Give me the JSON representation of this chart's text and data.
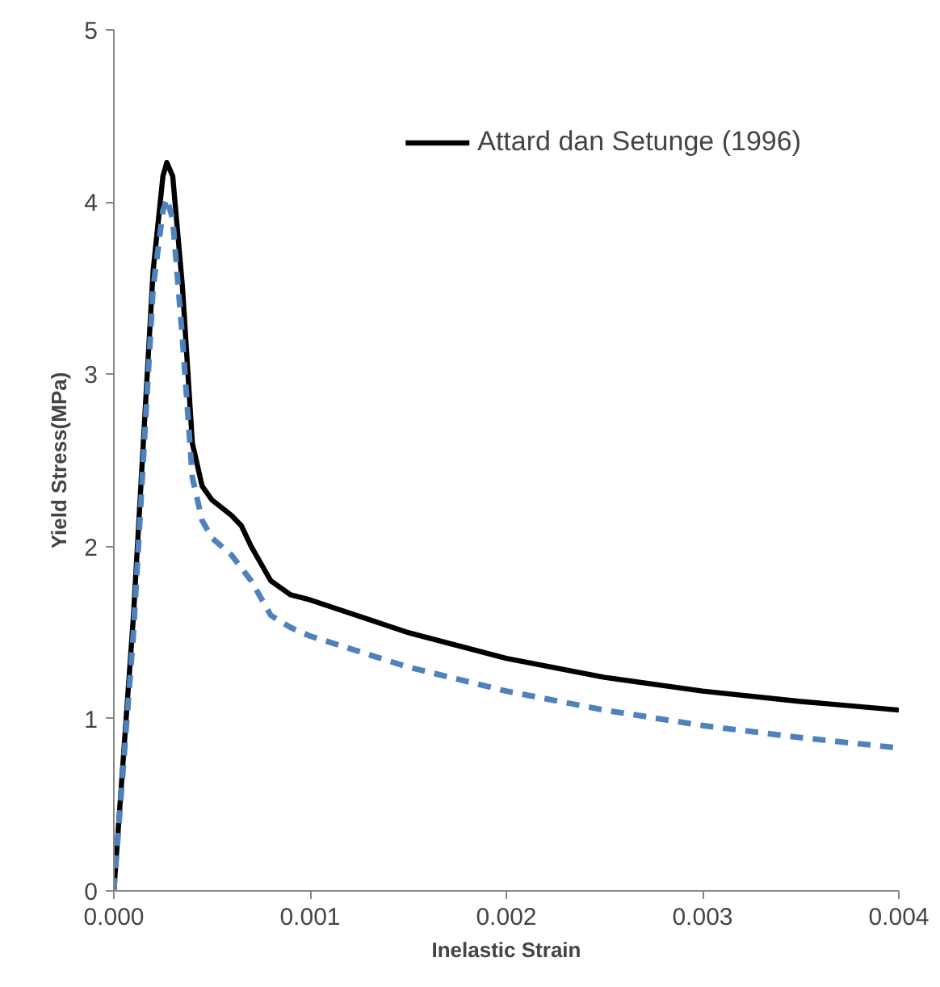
{
  "chart_data": {
    "type": "line",
    "xlabel": "Inelastic Strain",
    "ylabel": "Yield Stress(MPa)",
    "xlim": [
      0,
      0.004
    ],
    "ylim": [
      0,
      5
    ],
    "xticks": [
      {
        "value": 0,
        "label": "0.000"
      },
      {
        "value": 0.001,
        "label": "0.001"
      },
      {
        "value": 0.002,
        "label": "0.002"
      },
      {
        "value": 0.003,
        "label": "0.003"
      },
      {
        "value": 0.004,
        "label": "0.004"
      }
    ],
    "yticks": [
      0,
      1,
      2,
      3,
      4,
      5
    ],
    "grid": false,
    "legend": "top right",
    "series": [
      {
        "name": "Attard dan Setunge (1996)",
        "color": "#000000",
        "line_style": "solid",
        "x": [
          0,
          0.0001,
          0.0002,
          0.00025,
          0.00027,
          0.0003,
          0.00035,
          0.0004,
          0.00045,
          0.0005,
          0.0006,
          0.00065,
          0.0007,
          0.0008,
          0.0009,
          0.001,
          0.0015,
          0.002,
          0.0025,
          0.003,
          0.0035,
          0.004
        ],
        "values": [
          0,
          1.6,
          3.6,
          4.15,
          4.23,
          4.15,
          3.5,
          2.6,
          2.35,
          2.27,
          2.18,
          2.12,
          2.0,
          1.8,
          1.72,
          1.69,
          1.5,
          1.35,
          1.24,
          1.16,
          1.1,
          1.05
        ]
      },
      {
        "color": "#4f81bd",
        "line_style": "dashed",
        "x": [
          0,
          0.0001,
          0.0002,
          0.00025,
          0.00027,
          0.0003,
          0.00035,
          0.0004,
          0.00045,
          0.0005,
          0.0006,
          0.0007,
          0.0008,
          0.0009,
          0.001,
          0.0015,
          0.002,
          0.0025,
          0.003,
          0.0035,
          0.004
        ],
        "values": [
          0,
          1.5,
          3.5,
          3.95,
          4.02,
          3.9,
          3.2,
          2.4,
          2.15,
          2.05,
          1.95,
          1.8,
          1.6,
          1.53,
          1.48,
          1.3,
          1.16,
          1.05,
          0.96,
          0.89,
          0.83
        ]
      }
    ]
  }
}
